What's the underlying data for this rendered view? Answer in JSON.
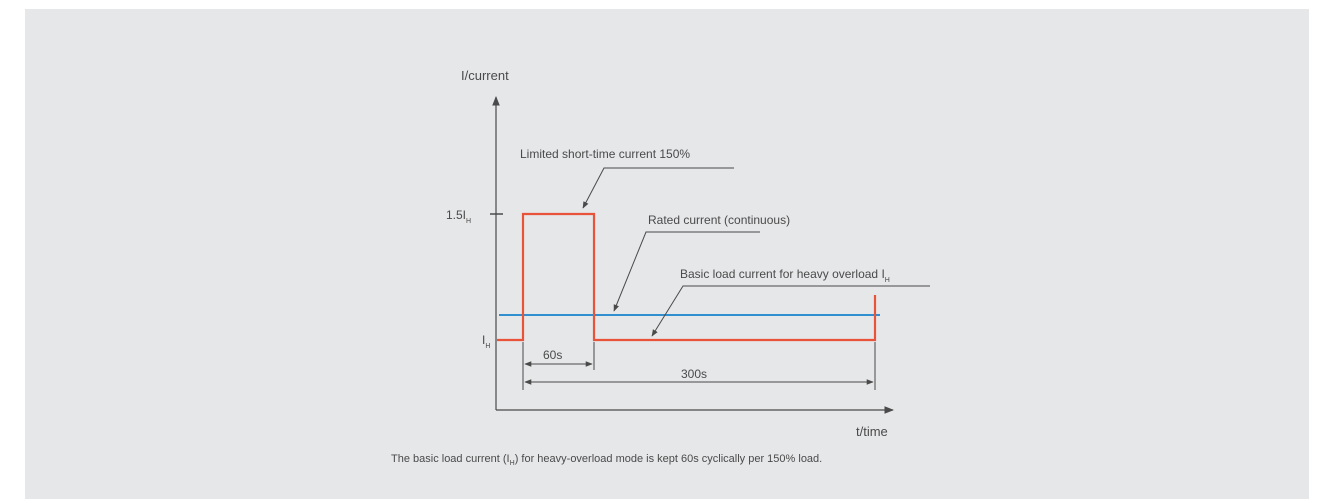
{
  "axes": {
    "y_label": "I/current",
    "x_label": "t/time",
    "y_tick_peak": "1.5I",
    "y_tick_peak_sub": "H",
    "y_tick_base": "I",
    "y_tick_base_sub": "H"
  },
  "annotations": {
    "short_time": "Limited short-time current 150%",
    "rated": "Rated current (continuous)",
    "basic_load": "Basic load current for heavy overload I",
    "basic_load_sub": "H"
  },
  "dimensions": {
    "pulse": "60s",
    "cycle": "300s"
  },
  "caption": {
    "before": "The basic load current (I",
    "sub": "H",
    "after": ") for heavy-overload mode is kept 60s cyclically per 150% load."
  },
  "colors": {
    "load_profile": "#e8533a",
    "rated_line": "#2f8fcf",
    "axis": "#4a4a4a"
  }
}
